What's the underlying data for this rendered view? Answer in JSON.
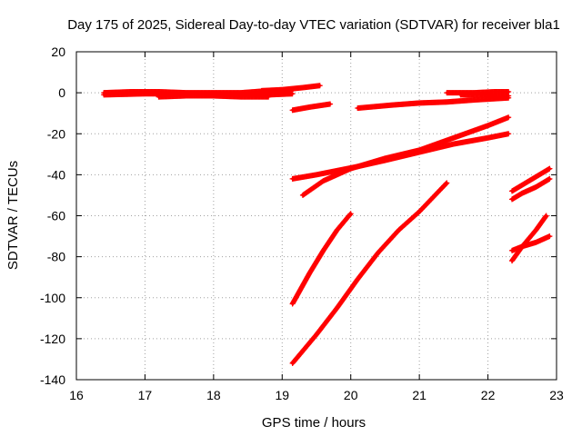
{
  "chart_data": {
    "type": "scatter",
    "title": "Day 175 of 2025, Sidereal Day-to-day VTEC variation (SDTVAR) for receiver bla1",
    "xlabel": "GPS time / hours",
    "ylabel": "SDTVAR / TECUs",
    "xlim": [
      16,
      23
    ],
    "ylim": [
      -140,
      20
    ],
    "xticks": [
      "16",
      "17",
      "18",
      "19",
      "20",
      "21",
      "22",
      "23"
    ],
    "yticks": [
      "-140",
      "-120",
      "-100",
      "-80",
      "-60",
      "-40",
      "-20",
      "0",
      "20"
    ],
    "grid": true,
    "marker": "plus",
    "color": "#ff0000",
    "series": [
      {
        "x": [
          16.4,
          16.8,
          17.2,
          17.6,
          18.0,
          18.4,
          18.8,
          19.15
        ],
        "y": [
          0,
          0.5,
          0.5,
          0,
          0,
          0,
          1,
          1
        ]
      },
      {
        "x": [
          16.4,
          17.0,
          17.6,
          18.2,
          18.8,
          19.15
        ],
        "y": [
          -1,
          -0.5,
          -0.5,
          -1,
          -1,
          -0.5
        ]
      },
      {
        "x": [
          17.2,
          17.6,
          18.0,
          18.4,
          18.8
        ],
        "y": [
          -2,
          -1.5,
          -1.5,
          -2,
          -2
        ]
      },
      {
        "x": [
          18.7,
          19.0,
          19.3,
          19.55
        ],
        "y": [
          1,
          1.5,
          2.5,
          3.5
        ]
      },
      {
        "x": [
          19.15,
          19.4,
          19.7
        ],
        "y": [
          -8.5,
          -7,
          -5.5
        ]
      },
      {
        "x": [
          20.1,
          20.6,
          21.0,
          21.4,
          21.8,
          22.3
        ],
        "y": [
          -7.5,
          -6,
          -5,
          -4.5,
          -3.5,
          -2.5
        ]
      },
      {
        "x": [
          21.4,
          21.8,
          22.1,
          22.3
        ],
        "y": [
          0,
          0,
          0.5,
          0.5
        ]
      },
      {
        "x": [
          21.6,
          21.9,
          22.1,
          22.3
        ],
        "y": [
          -1,
          -1,
          -1.5,
          -1.5
        ]
      },
      {
        "x": [
          19.15,
          19.5,
          19.8,
          20.1,
          20.5,
          21.0,
          21.5,
          22.0,
          22.3
        ],
        "y": [
          -42,
          -40,
          -38,
          -36,
          -33,
          -29,
          -25,
          -22,
          -20
        ]
      },
      {
        "x": [
          19.3,
          19.6,
          20.0,
          20.5,
          21.0,
          21.5,
          22.0,
          22.3
        ],
        "y": [
          -50,
          -43,
          -37,
          -32,
          -28,
          -22,
          -16,
          -12
        ]
      },
      {
        "x": [
          19.15,
          19.4,
          19.6,
          19.8,
          20.0
        ],
        "y": [
          -103,
          -88,
          -77,
          -67,
          -59
        ]
      },
      {
        "x": [
          19.15,
          19.5,
          19.8,
          20.1,
          20.4,
          20.7,
          21.0,
          21.2,
          21.4
        ],
        "y": [
          -132,
          -118,
          -105,
          -91,
          -78,
          -67,
          -58,
          -51,
          -44
        ]
      },
      {
        "x": [
          22.35,
          22.5,
          22.7,
          22.9
        ],
        "y": [
          -48,
          -45,
          -41,
          -37
        ]
      },
      {
        "x": [
          22.35,
          22.5,
          22.7,
          22.9
        ],
        "y": [
          -52,
          -49,
          -46,
          -42
        ]
      },
      {
        "x": [
          22.35,
          22.5,
          22.7,
          22.85
        ],
        "y": [
          -82,
          -75,
          -67,
          -60
        ]
      },
      {
        "x": [
          22.35,
          22.5,
          22.7,
          22.9
        ],
        "y": [
          -77,
          -75,
          -73,
          -70
        ]
      }
    ]
  }
}
